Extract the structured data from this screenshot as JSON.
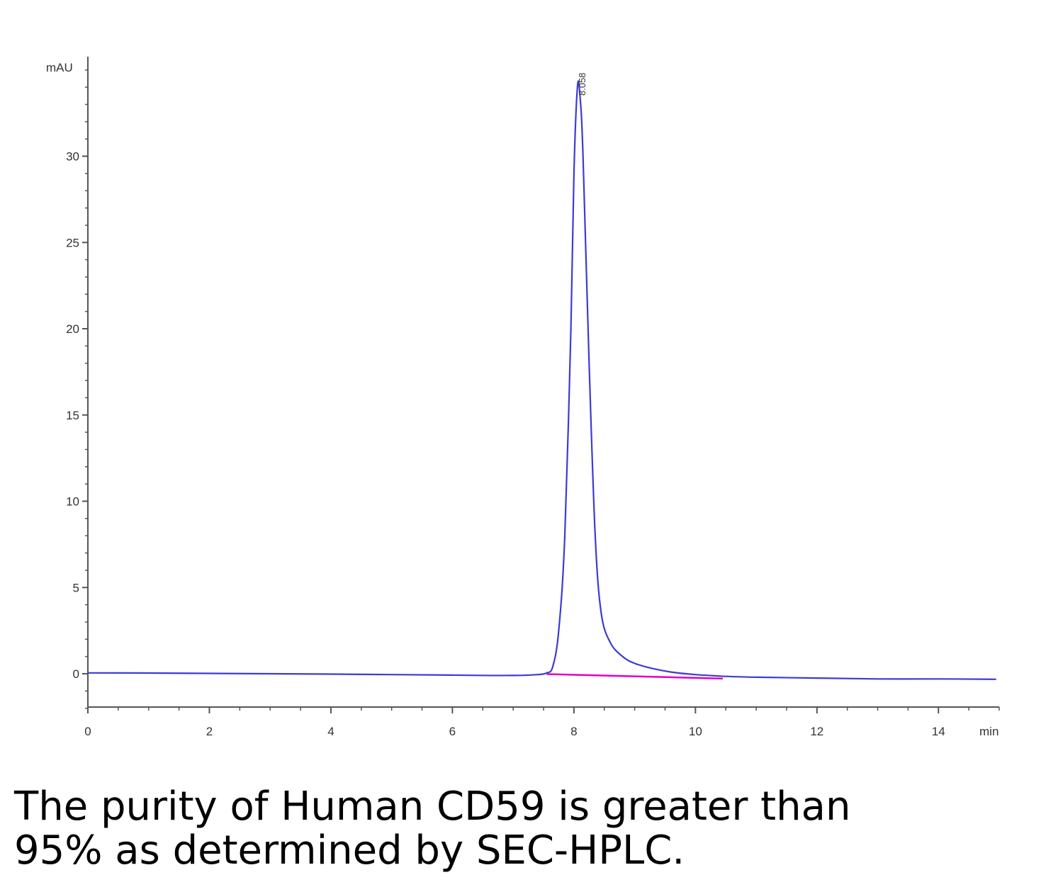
{
  "chart_data": {
    "type": "line",
    "ylabel": "mAU",
    "xlabel": "min",
    "xlim": [
      0,
      15
    ],
    "ylim": [
      -2,
      35
    ],
    "x_ticks": [
      0,
      2,
      4,
      6,
      8,
      10,
      12,
      14
    ],
    "y_ticks": [
      0,
      5,
      10,
      15,
      20,
      25,
      30
    ],
    "peak_label": "8.058",
    "grid": false,
    "series": [
      {
        "color": "#3b3bd6",
        "points": [
          [
            0,
            0.05
          ],
          [
            1,
            0.04
          ],
          [
            2,
            0.02
          ],
          [
            3,
            0.0
          ],
          [
            4,
            -0.02
          ],
          [
            5,
            -0.05
          ],
          [
            6,
            -0.08
          ],
          [
            7,
            -0.1
          ],
          [
            7.4,
            -0.05
          ],
          [
            7.55,
            0.05
          ],
          [
            7.65,
            0.4
          ],
          [
            7.75,
            2.5
          ],
          [
            7.85,
            8.0
          ],
          [
            7.95,
            20.0
          ],
          [
            8.0,
            29.0
          ],
          [
            8.058,
            34.0
          ],
          [
            8.1,
            33.5
          ],
          [
            8.15,
            30.0
          ],
          [
            8.25,
            18.0
          ],
          [
            8.35,
            8.0
          ],
          [
            8.45,
            3.5
          ],
          [
            8.6,
            1.8
          ],
          [
            8.8,
            1.0
          ],
          [
            9.0,
            0.6
          ],
          [
            9.3,
            0.3
          ],
          [
            9.6,
            0.1
          ],
          [
            10.0,
            -0.05
          ],
          [
            10.5,
            -0.15
          ],
          [
            11,
            -0.2
          ],
          [
            12,
            -0.25
          ],
          [
            13,
            -0.3
          ],
          [
            14,
            -0.3
          ],
          [
            14.95,
            -0.32
          ]
        ]
      },
      {
        "color": "#e000c8",
        "points": [
          [
            7.55,
            -0.02
          ],
          [
            10.45,
            -0.28
          ]
        ]
      }
    ]
  },
  "caption": "The purity of Human CD59 is greater than 95% as determined by SEC-HPLC."
}
